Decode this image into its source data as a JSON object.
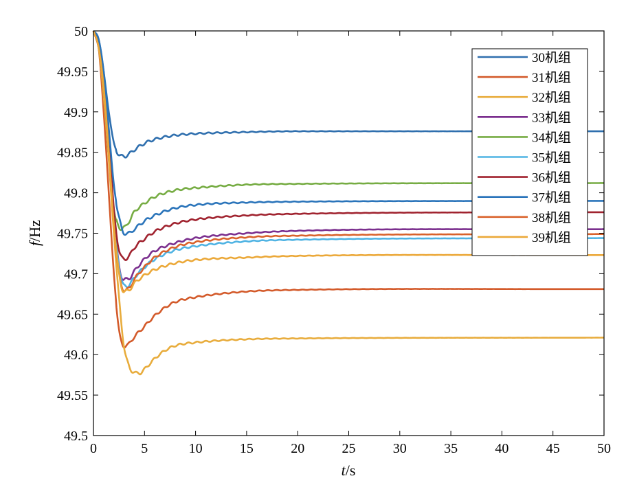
{
  "chart_data": {
    "type": "line",
    "xlabel": {
      "italic": "t",
      "rest": "/s"
    },
    "ylabel": {
      "italic": "f",
      "rest": "/Hz"
    },
    "xlim": [
      0,
      50
    ],
    "ylim": [
      49.5,
      50
    ],
    "xticks": [
      0,
      5,
      10,
      15,
      20,
      25,
      30,
      35,
      40,
      45,
      50
    ],
    "yticks": [
      49.5,
      49.55,
      49.6,
      49.65,
      49.7,
      49.75,
      49.8,
      49.85,
      49.9,
      49.95,
      50
    ],
    "xtick_labels": [
      "0",
      "5",
      "10",
      "15",
      "20",
      "25",
      "30",
      "35",
      "40",
      "45",
      "50"
    ],
    "ytick_labels": [
      "49.5",
      "49.55",
      "49.6",
      "49.65",
      "49.7",
      "49.75",
      "49.8",
      "49.85",
      "49.9",
      "49.95",
      "50"
    ],
    "grid": false,
    "legend_position": "top-right",
    "series": [
      {
        "name": "30机组",
        "color": "#2f6fae",
        "final": 49.876,
        "points": [
          [
            0,
            50
          ],
          [
            0.5,
            49.99
          ],
          [
            1,
            49.95
          ],
          [
            1.5,
            49.9
          ],
          [
            2,
            49.862
          ],
          [
            2.5,
            49.847
          ],
          [
            3,
            49.845
          ],
          [
            3.5,
            49.848
          ],
          [
            4,
            49.853
          ],
          [
            5,
            49.861
          ],
          [
            6,
            49.866
          ],
          [
            8,
            49.871
          ],
          [
            10,
            49.873
          ],
          [
            15,
            49.875
          ],
          [
            20,
            49.876
          ],
          [
            50,
            49.876
          ]
        ]
      },
      {
        "name": "31机组",
        "color": "#d35a2a",
        "final": 49.681,
        "points": [
          [
            0,
            50
          ],
          [
            0.5,
            49.98
          ],
          [
            1,
            49.9
          ],
          [
            1.5,
            49.8
          ],
          [
            2,
            49.7
          ],
          [
            2.5,
            49.63
          ],
          [
            2.8,
            49.613
          ],
          [
            3.3,
            49.612
          ],
          [
            4,
            49.622
          ],
          [
            5,
            49.635
          ],
          [
            6,
            49.648
          ],
          [
            7,
            49.658
          ],
          [
            8,
            49.665
          ],
          [
            10,
            49.671
          ],
          [
            15,
            49.678
          ],
          [
            20,
            49.68
          ],
          [
            50,
            49.681
          ]
        ]
      },
      {
        "name": "32机组",
        "color": "#e8ac3c",
        "final": 49.621,
        "points": [
          [
            0,
            50
          ],
          [
            0.5,
            49.98
          ],
          [
            1,
            49.92
          ],
          [
            1.5,
            49.84
          ],
          [
            2,
            49.75
          ],
          [
            2.5,
            49.67
          ],
          [
            3,
            49.61
          ],
          [
            3.5,
            49.585
          ],
          [
            4,
            49.578
          ],
          [
            4.5,
            49.577
          ],
          [
            5,
            49.582
          ],
          [
            6,
            49.595
          ],
          [
            7,
            49.605
          ],
          [
            8,
            49.611
          ],
          [
            10,
            49.615
          ],
          [
            15,
            49.619
          ],
          [
            20,
            49.62
          ],
          [
            50,
            49.621
          ]
        ]
      },
      {
        "name": "33机组",
        "color": "#7b2f8e",
        "final": 49.755,
        "points": [
          [
            0,
            50
          ],
          [
            0.5,
            49.98
          ],
          [
            1,
            49.93
          ],
          [
            1.5,
            49.85
          ],
          [
            2,
            49.77
          ],
          [
            2.5,
            49.71
          ],
          [
            3,
            49.693
          ],
          [
            3.5,
            49.694
          ],
          [
            4,
            49.703
          ],
          [
            5,
            49.718
          ],
          [
            6,
            49.728
          ],
          [
            8,
            49.738
          ],
          [
            10,
            49.744
          ],
          [
            15,
            49.75
          ],
          [
            20,
            49.753
          ],
          [
            50,
            49.755
          ]
        ]
      },
      {
        "name": "34机组",
        "color": "#76ac43",
        "final": 49.812,
        "points": [
          [
            0,
            50
          ],
          [
            0.5,
            49.98
          ],
          [
            1,
            49.93
          ],
          [
            1.5,
            49.85
          ],
          [
            2,
            49.78
          ],
          [
            2.5,
            49.758
          ],
          [
            3,
            49.757
          ],
          [
            3.5,
            49.765
          ],
          [
            4,
            49.776
          ],
          [
            5,
            49.787
          ],
          [
            6,
            49.795
          ],
          [
            8,
            49.803
          ],
          [
            10,
            49.806
          ],
          [
            15,
            49.81
          ],
          [
            20,
            49.811
          ],
          [
            50,
            49.812
          ]
        ]
      },
      {
        "name": "35机组",
        "color": "#4fb3e3",
        "final": 49.744,
        "points": [
          [
            0,
            50
          ],
          [
            0.5,
            49.98
          ],
          [
            1,
            49.93
          ],
          [
            1.5,
            49.85
          ],
          [
            2,
            49.77
          ],
          [
            2.5,
            49.71
          ],
          [
            3,
            49.685
          ],
          [
            3.5,
            49.686
          ],
          [
            4,
            49.695
          ],
          [
            5,
            49.708
          ],
          [
            6,
            49.718
          ],
          [
            8,
            49.729
          ],
          [
            10,
            49.734
          ],
          [
            15,
            49.74
          ],
          [
            20,
            49.742
          ],
          [
            50,
            49.744
          ]
        ]
      },
      {
        "name": "36机组",
        "color": "#a0232f",
        "final": 49.776,
        "points": [
          [
            0,
            50
          ],
          [
            0.5,
            49.98
          ],
          [
            1,
            49.94
          ],
          [
            1.5,
            49.87
          ],
          [
            2,
            49.78
          ],
          [
            2.5,
            49.73
          ],
          [
            3,
            49.718
          ],
          [
            3.5,
            49.722
          ],
          [
            4,
            49.732
          ],
          [
            5,
            49.743
          ],
          [
            6,
            49.752
          ],
          [
            8,
            49.762
          ],
          [
            10,
            49.767
          ],
          [
            15,
            49.772
          ],
          [
            20,
            49.774
          ],
          [
            50,
            49.776
          ]
        ]
      },
      {
        "name": "37机组",
        "color": "#2a74ba",
        "final": 49.79,
        "points": [
          [
            0,
            50
          ],
          [
            0.5,
            49.99
          ],
          [
            1,
            49.95
          ],
          [
            1.5,
            49.88
          ],
          [
            2,
            49.81
          ],
          [
            2.5,
            49.77
          ],
          [
            3,
            49.75
          ],
          [
            3.5,
            49.75
          ],
          [
            4,
            49.755
          ],
          [
            5,
            49.765
          ],
          [
            6,
            49.772
          ],
          [
            8,
            49.781
          ],
          [
            10,
            49.785
          ],
          [
            15,
            49.788
          ],
          [
            20,
            49.789
          ],
          [
            50,
            49.79
          ]
        ]
      },
      {
        "name": "38机组",
        "color": "#d9622b",
        "final": 49.749,
        "points": [
          [
            0,
            50
          ],
          [
            0.5,
            49.98
          ],
          [
            1,
            49.93
          ],
          [
            1.5,
            49.85
          ],
          [
            2,
            49.76
          ],
          [
            2.5,
            49.7
          ],
          [
            3,
            49.68
          ],
          [
            3.5,
            49.682
          ],
          [
            4,
            49.693
          ],
          [
            5,
            49.708
          ],
          [
            6,
            49.72
          ],
          [
            8,
            49.733
          ],
          [
            10,
            49.739
          ],
          [
            15,
            49.745
          ],
          [
            20,
            49.747
          ],
          [
            50,
            49.749
          ]
        ]
      },
      {
        "name": "39机组",
        "color": "#eba838",
        "final": 49.723,
        "points": [
          [
            0,
            50
          ],
          [
            0.5,
            49.98
          ],
          [
            1,
            49.93
          ],
          [
            1.5,
            49.85
          ],
          [
            2,
            49.76
          ],
          [
            2.5,
            49.7
          ],
          [
            3,
            49.678
          ],
          [
            3.5,
            49.68
          ],
          [
            4,
            49.688
          ],
          [
            5,
            49.698
          ],
          [
            6,
            49.705
          ],
          [
            8,
            49.713
          ],
          [
            10,
            49.717
          ],
          [
            15,
            49.72
          ],
          [
            20,
            49.722
          ],
          [
            50,
            49.723
          ]
        ]
      }
    ]
  }
}
